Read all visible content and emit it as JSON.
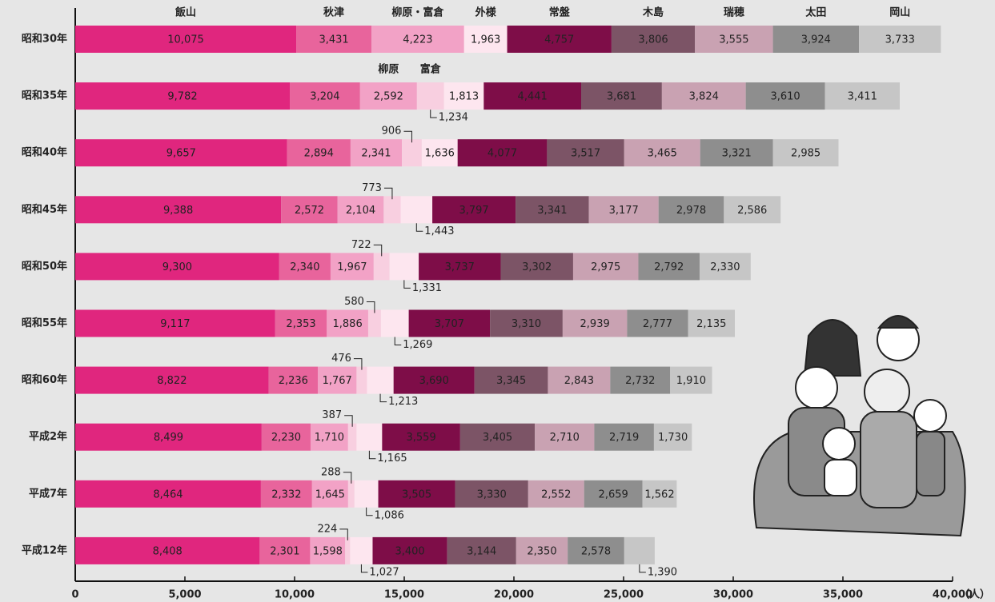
{
  "chart_data": {
    "type": "stacked-bar-horizontal",
    "categories": [
      "昭和30年",
      "昭和35年",
      "昭和40年",
      "昭和45年",
      "昭和50年",
      "昭和55年",
      "昭和60年",
      "平成2年",
      "平成7年",
      "平成12年"
    ],
    "series": [
      {
        "name": "飯山",
        "color": "#e0267e",
        "values": [
          10075,
          9782,
          9657,
          9388,
          9300,
          9117,
          8822,
          8499,
          8464,
          8408
        ],
        "value_labels": [
          "10,075",
          "9,782",
          "9,657",
          "9,388",
          "9,300",
          "9,117",
          "8,822",
          "8,499",
          "8,464",
          "8,408"
        ]
      },
      {
        "name": "秋津",
        "color": "#e8649c",
        "values": [
          3431,
          3204,
          2894,
          2572,
          2340,
          2353,
          2236,
          2230,
          2332,
          2301
        ],
        "value_labels": [
          "3,431",
          "3,204",
          "2,894",
          "2,572",
          "2,340",
          "2,353",
          "2,236",
          "2,230",
          "2,332",
          "2,301"
        ]
      },
      {
        "name": "柳原・富倉",
        "color": "#f2a2c6",
        "values": [
          4223,
          null,
          null,
          null,
          null,
          null,
          null,
          null,
          null,
          null
        ],
        "value_labels": [
          "4,223",
          null,
          null,
          null,
          null,
          null,
          null,
          null,
          null,
          null
        ]
      },
      {
        "name": "柳原",
        "color": "#f2a2c6",
        "values": [
          null,
          2592,
          2341,
          2104,
          1967,
          1886,
          1767,
          1710,
          1645,
          1598
        ],
        "value_labels": [
          null,
          "2,592",
          "2,341",
          "2,104",
          "1,967",
          "1,886",
          "1,767",
          "1,710",
          "1,645",
          "1,598"
        ]
      },
      {
        "name": "富倉",
        "color": "#f8cfe0",
        "values": [
          null,
          1234,
          906,
          773,
          722,
          580,
          476,
          387,
          288,
          224
        ],
        "value_labels": [
          null,
          "1,234",
          null,
          null,
          null,
          null,
          null,
          null,
          null,
          null
        ]
      },
      {
        "name": "外様",
        "color": "#fde6ef",
        "values": [
          1963,
          1813,
          1636,
          1443,
          1331,
          1269,
          1213,
          1165,
          1086,
          1027
        ],
        "value_labels": [
          "1,963",
          "1,813",
          "1,636",
          "1,443",
          "1,331",
          "1,269",
          "1,213",
          "1,165",
          "1,086",
          "1,027"
        ]
      },
      {
        "name": "常盤",
        "color": "#7e0d48",
        "values": [
          4757,
          4441,
          4077,
          3797,
          3737,
          3707,
          3690,
          3559,
          3505,
          3400
        ],
        "value_labels": [
          "4,757",
          "4,441",
          "4,077",
          "3,797",
          "3,737",
          "3,707",
          "3,690",
          "3,559",
          "3,505",
          "3,400"
        ]
      },
      {
        "name": "木島",
        "color": "#7c5466",
        "values": [
          3806,
          3681,
          3517,
          3341,
          3302,
          3310,
          3345,
          3405,
          3330,
          3144
        ],
        "value_labels": [
          "3,806",
          "3,681",
          "3,517",
          "3,341",
          "3,302",
          "3,310",
          "3,345",
          "3,405",
          "3,330",
          "3,144"
        ]
      },
      {
        "name": "瑞穂",
        "color": "#c9a2b2",
        "values": [
          3555,
          3824,
          3465,
          3177,
          2975,
          2939,
          2843,
          2710,
          2552,
          2350
        ],
        "value_labels": [
          "3,555",
          "3,824",
          "3,465",
          "3,177",
          "2,975",
          "2,939",
          "2,843",
          "2,710",
          "2,552",
          "2,350"
        ]
      },
      {
        "name": "太田",
        "color": "#8e8e8e",
        "values": [
          3924,
          3610,
          3321,
          2978,
          2792,
          2777,
          2732,
          2719,
          2659,
          2578
        ],
        "value_labels": [
          "3,924",
          "3,610",
          "3,321",
          "2,978",
          "2,792",
          "2,777",
          "2,732",
          "2,719",
          "2,659",
          "2,578"
        ]
      },
      {
        "name": "岡山",
        "color": "#c6c6c6",
        "values": [
          3733,
          3411,
          2985,
          2586,
          2330,
          2135,
          1910,
          1730,
          1562,
          1390
        ],
        "value_labels": [
          "3,733",
          "3,411",
          "2,985",
          "2,586",
          "2,330",
          "2,135",
          "1,910",
          "1,730",
          "1,562",
          "1,390"
        ]
      }
    ],
    "xlim": [
      0,
      40000
    ],
    "xticks": [
      0,
      {
        "value": 5000,
        "label": "5,000"
      },
      {
        "value": 10000,
        "label": "10,000"
      },
      {
        "value": 15000,
        "label": "15,000"
      },
      {
        "value": 20000,
        "label": "20,000"
      },
      {
        "value": 25000,
        "label": "25,000"
      },
      {
        "value": 30000,
        "label": "30,000"
      },
      {
        "value": 35000,
        "label": "35,000"
      },
      {
        "value": 40000,
        "label": "40,000"
      }
    ],
    "x_unit": "（人）"
  }
}
